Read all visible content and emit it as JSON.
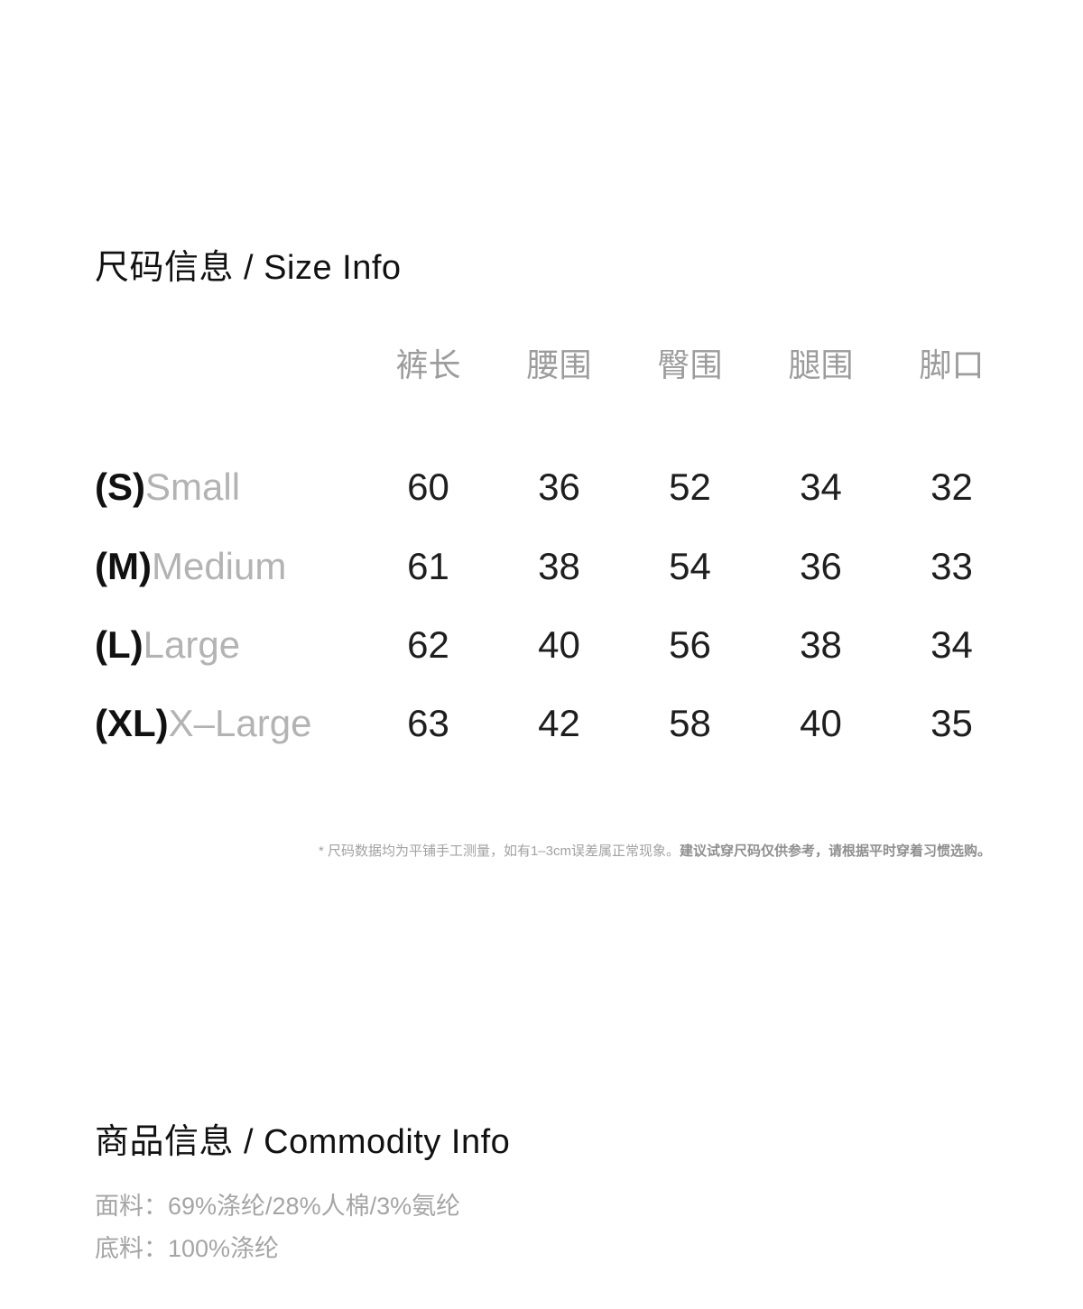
{
  "size_info": {
    "title": "尺码信息 / Size Info",
    "columns": [
      "裤长",
      "腰围",
      "臀围",
      "腿围",
      "脚口"
    ],
    "rows": [
      {
        "code": "(S)",
        "name": "Small",
        "values": [
          "60",
          "36",
          "52",
          "34",
          "32"
        ]
      },
      {
        "code": "(M)",
        "name": "Medium",
        "values": [
          "61",
          "38",
          "54",
          "36",
          "33"
        ]
      },
      {
        "code": "(L)",
        "name": "Large",
        "values": [
          "62",
          "40",
          "56",
          "38",
          "34"
        ]
      },
      {
        "code": "(XL)",
        "name": "X–Large",
        "values": [
          "63",
          "42",
          "58",
          "40",
          "35"
        ]
      }
    ],
    "note_part1": "* 尺码数据均为平铺手工测量，如有1–3cm误差属正常现象。",
    "note_part2": "建议试穿尺码仅供参考，请根据平时穿着习惯选购。"
  },
  "commodity_info": {
    "title": "商品信息 / Commodity Info",
    "lines": [
      "面料：69%涤纶/28%人棉/3%氨纶",
      "底料：100%涤纶"
    ]
  },
  "colors": {
    "background": "#ffffff",
    "text_primary": "#111111",
    "table_value": "#1e1e1e",
    "table_header_gray": "#9c9c9c",
    "size_name_gray": "#b3b3b3",
    "footnote_gray": "#a2a2a2",
    "footnote_emphasis_gray": "#8f8f8f",
    "fabric_gray": "#a5a5a5"
  }
}
